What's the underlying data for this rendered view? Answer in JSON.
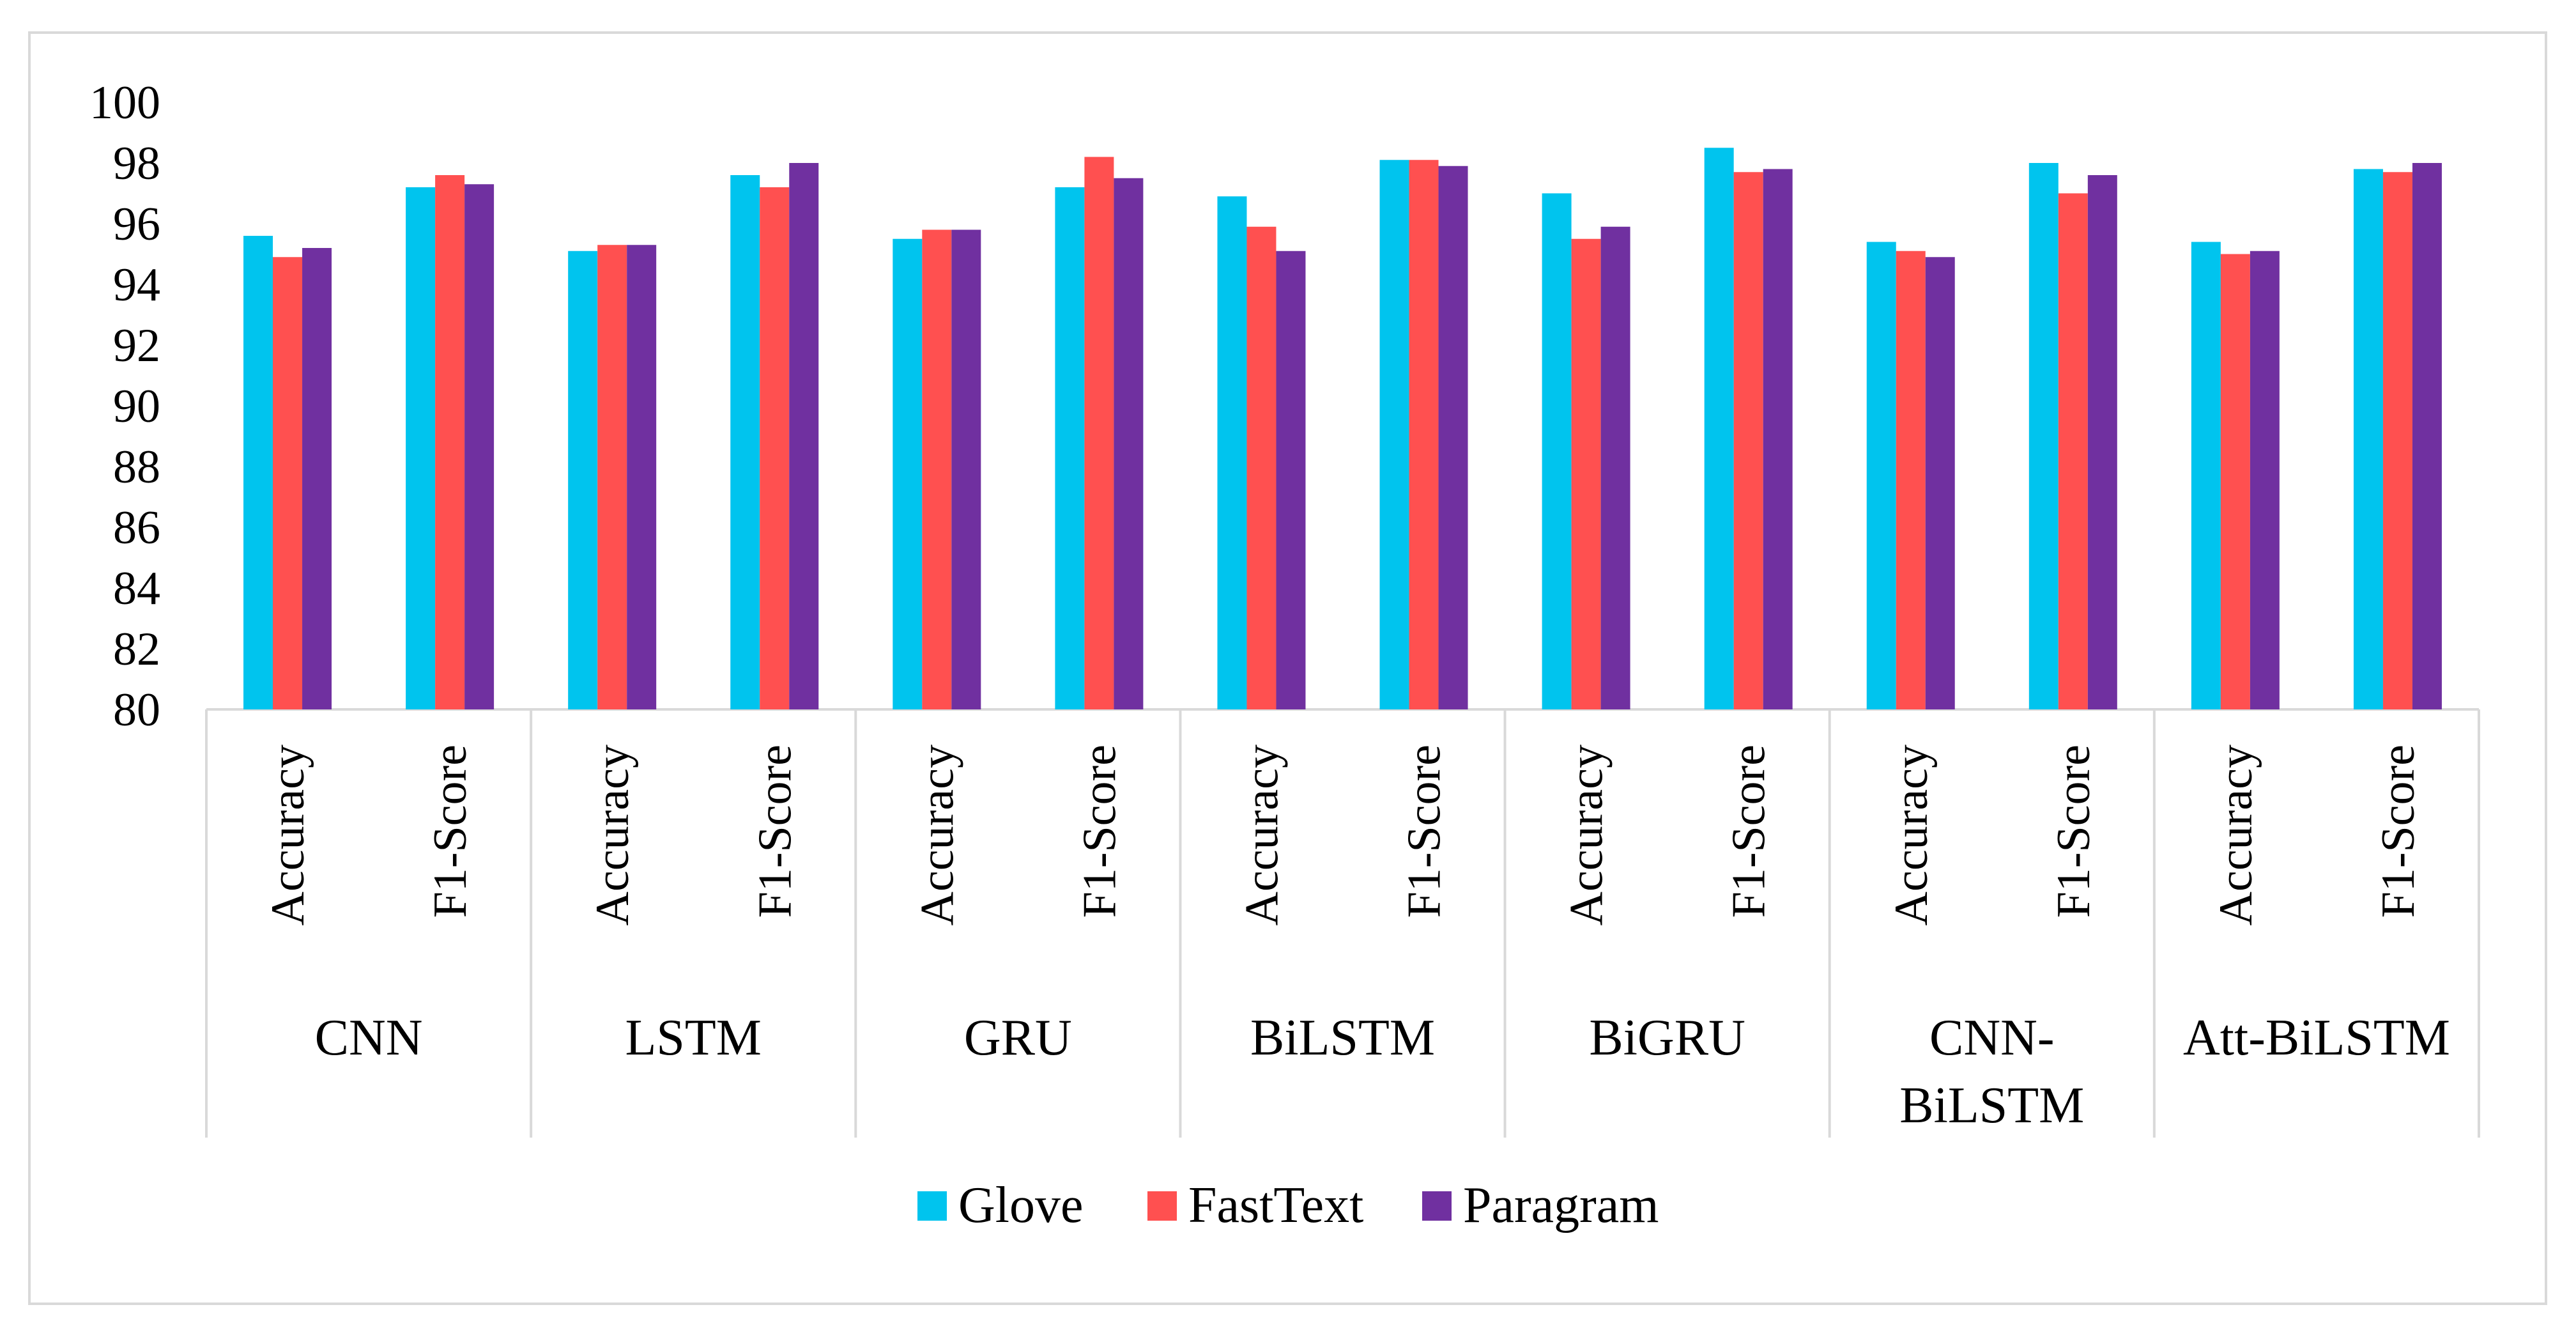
{
  "chart_data": {
    "type": "bar",
    "title": "",
    "xlabel": "",
    "ylabel": "",
    "ylim": [
      80,
      100
    ],
    "y_ticks": [
      "80",
      "82",
      "84",
      "86",
      "88",
      "90",
      "92",
      "94",
      "96",
      "98",
      "100"
    ],
    "groups": [
      {
        "name": "CNN",
        "label_lines": [
          "CNN"
        ],
        "metrics": [
          "Accuracy",
          "F1-Score"
        ]
      },
      {
        "name": "LSTM",
        "label_lines": [
          "LSTM"
        ],
        "metrics": [
          "Accuracy",
          "F1-Score"
        ]
      },
      {
        "name": "GRU",
        "label_lines": [
          "GRU"
        ],
        "metrics": [
          "Accuracy",
          "F1-Score"
        ]
      },
      {
        "name": "BiLSTM",
        "label_lines": [
          "BiLSTM"
        ],
        "metrics": [
          "Accuracy",
          "F1-Score"
        ]
      },
      {
        "name": "BiGRU",
        "label_lines": [
          "BiGRU"
        ],
        "metrics": [
          "Accuracy",
          "F1-Score"
        ]
      },
      {
        "name": "CNN-BiLSTM",
        "label_lines": [
          "CNN-",
          "BiLSTM"
        ],
        "metrics": [
          "Accuracy",
          "F1-Score"
        ]
      },
      {
        "name": "Att-BiLSTM",
        "label_lines": [
          "Att-BiLSTM"
        ],
        "metrics": [
          "Accuracy",
          "F1-Score"
        ]
      }
    ],
    "series": [
      {
        "name": "Glove",
        "color": "#00c4ee",
        "values": [
          95.6,
          97.2,
          95.1,
          97.6,
          95.5,
          97.2,
          96.9,
          98.1,
          97.0,
          98.5,
          95.4,
          98.0,
          95.4,
          97.8
        ]
      },
      {
        "name": "FastText",
        "color": "#ff5050",
        "values": [
          94.9,
          97.6,
          95.3,
          97.2,
          95.8,
          98.2,
          95.9,
          98.1,
          95.5,
          97.7,
          95.1,
          97.0,
          95.0,
          97.7
        ]
      },
      {
        "name": "Paragram",
        "color": "#7030a0",
        "values": [
          95.2,
          97.3,
          95.3,
          98.0,
          95.8,
          97.5,
          95.1,
          97.9,
          95.9,
          97.8,
          94.9,
          97.6,
          95.1,
          98.0
        ]
      }
    ],
    "legend_position": "bottom"
  }
}
